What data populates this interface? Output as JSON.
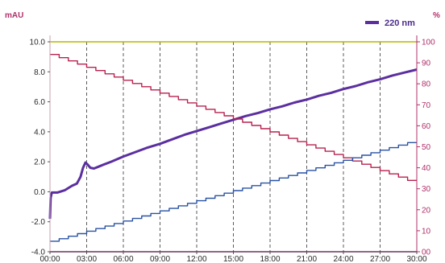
{
  "chart_data": {
    "type": "line",
    "left_unit": "mAU",
    "right_unit": "%",
    "legend": {
      "label": "220 nm",
      "placement": "top-right",
      "color": "#5b2fa0"
    },
    "x_ticks": [
      "00:00",
      "03:00",
      "06:00",
      "09:00",
      "12:00",
      "15:00",
      "18:00",
      "21:00",
      "24:00",
      "27:00",
      "30:00"
    ],
    "x_range": [
      0,
      30
    ],
    "y_left_ticks": [
      "-4.0",
      "-2.0",
      "0.0",
      "2.0",
      "4.0",
      "6.0",
      "8.0",
      "10.0"
    ],
    "y_left_range": [
      -4,
      10
    ],
    "y_right_ticks": [
      "00",
      "10",
      "20",
      "30",
      "40",
      "50",
      "60",
      "70",
      "80",
      "90",
      "100"
    ],
    "y_right_range": [
      0,
      100
    ],
    "grid": {
      "vertical": true,
      "style": "dashed"
    },
    "series": [
      {
        "name": "220 nm",
        "axis": "left",
        "color": "#5b2fa0",
        "x": [
          0,
          0.05,
          0.15,
          0.25,
          0.6,
          1.2,
          1.8,
          2.2,
          2.5,
          2.7,
          2.9,
          3.1,
          3.3,
          3.6,
          4.2,
          5,
          6,
          7,
          8,
          9,
          10,
          11,
          12,
          13,
          14,
          15,
          16,
          17,
          18,
          19,
          20,
          21,
          22,
          23,
          24,
          25,
          26,
          27,
          28,
          29,
          30
        ],
        "y": [
          -1.8,
          -0.4,
          -0.05,
          -0.05,
          -0.05,
          0.1,
          0.4,
          0.55,
          1.0,
          1.6,
          1.95,
          1.8,
          1.6,
          1.55,
          1.75,
          2.0,
          2.35,
          2.65,
          2.95,
          3.2,
          3.5,
          3.8,
          4.05,
          4.3,
          4.55,
          4.8,
          5.05,
          5.25,
          5.5,
          5.7,
          5.95,
          6.15,
          6.4,
          6.6,
          6.85,
          7.05,
          7.3,
          7.5,
          7.75,
          7.95,
          8.15
        ]
      },
      {
        "name": "",
        "axis": "right",
        "color": "#b8214f",
        "step": true,
        "x": [
          0,
          30
        ],
        "y": [
          94,
          34
        ]
      },
      {
        "name": "",
        "axis": "right",
        "color": "#2952a3",
        "step": true,
        "x": [
          0,
          30
        ],
        "y": [
          5,
          52
        ]
      },
      {
        "name": "",
        "axis": "right",
        "color": "#b8b600",
        "x": [
          0,
          30
        ],
        "y": [
          100,
          100
        ]
      },
      {
        "name": "",
        "axis": "right",
        "color": "#d23ab0",
        "x": [
          0,
          30
        ],
        "y": [
          0,
          0
        ]
      }
    ]
  }
}
